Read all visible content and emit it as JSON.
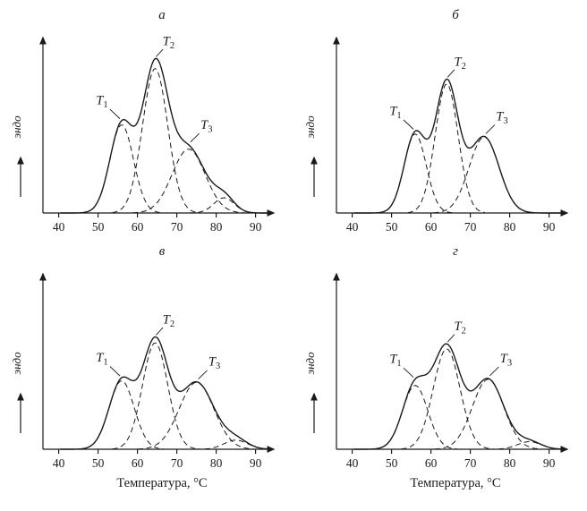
{
  "figure": {
    "panel_labels": [
      "а",
      "б",
      "в",
      "г"
    ],
    "xlabel": "Температура, °C",
    "ylabel": "эндо",
    "x_ticks": [
      40,
      50,
      60,
      70,
      80,
      90
    ],
    "line_color": "#1a1a1a",
    "background_color": "#ffffff"
  },
  "chart_data": [
    {
      "type": "line",
      "panel_label": "а",
      "xlabel": "Температура, °C",
      "ylabel": "эндо",
      "x_ticks": [
        40,
        50,
        60,
        70,
        80,
        90
      ],
      "x_range": [
        40,
        94
      ],
      "y_axis": "endothermic heat flow, arbitrary units, no ticks",
      "composite_curve": "solid line = sum of dashed component peaks",
      "peaks": [
        {
          "label": "T",
          "sub": "1",
          "center": 56,
          "amplitude": 0.58,
          "sigma": 3.0
        },
        {
          "label": "T",
          "sub": "2",
          "center": 64.5,
          "amplitude": 0.95,
          "sigma": 3.2
        },
        {
          "label": "T",
          "sub": "3",
          "center": 73,
          "amplitude": 0.42,
          "sigma": 4.2
        },
        {
          "label": null,
          "sub": null,
          "center": 82,
          "amplitude": 0.1,
          "sigma": 2.6
        }
      ]
    },
    {
      "type": "line",
      "panel_label": "б",
      "xlabel": "Температура, °C",
      "ylabel": "эндо",
      "x_ticks": [
        40,
        50,
        60,
        70,
        80,
        90
      ],
      "x_range": [
        40,
        94
      ],
      "y_axis": "endothermic heat flow, arbitrary units, no ticks",
      "composite_curve": "solid line = sum of dashed component peaks",
      "peaks": [
        {
          "label": "T",
          "sub": "1",
          "center": 56,
          "amplitude": 0.52,
          "sigma": 2.8
        },
        {
          "label": "T",
          "sub": "2",
          "center": 64,
          "amplitude": 0.85,
          "sigma": 2.9
        },
        {
          "label": "T",
          "sub": "3",
          "center": 73.5,
          "amplitude": 0.5,
          "sigma": 3.8
        }
      ]
    },
    {
      "type": "line",
      "panel_label": "в",
      "xlabel": "Температура, °C",
      "ylabel": "эндо",
      "x_ticks": [
        40,
        50,
        60,
        70,
        80,
        90
      ],
      "x_range": [
        40,
        94
      ],
      "y_axis": "endothermic heat flow, arbitrary units, no ticks",
      "composite_curve": "solid line = sum of dashed component peaks",
      "peaks": [
        {
          "label": "T",
          "sub": "1",
          "center": 56,
          "amplitude": 0.45,
          "sigma": 3.2
        },
        {
          "label": "T",
          "sub": "2",
          "center": 64.5,
          "amplitude": 0.7,
          "sigma": 3.2
        },
        {
          "label": "T",
          "sub": "3",
          "center": 75,
          "amplitude": 0.44,
          "sigma": 4.4
        },
        {
          "label": null,
          "sub": null,
          "center": 85,
          "amplitude": 0.06,
          "sigma": 3.0
        }
      ]
    },
    {
      "type": "line",
      "panel_label": "г",
      "xlabel": "Температура, °C",
      "ylabel": "эндо",
      "x_ticks": [
        40,
        50,
        60,
        70,
        80,
        90
      ],
      "x_range": [
        40,
        94
      ],
      "y_axis": "endothermic heat flow, arbitrary units, no ticks",
      "composite_curve": "solid line = sum of dashed component peaks",
      "peaks": [
        {
          "label": "T",
          "sub": "1",
          "center": 56,
          "amplitude": 0.42,
          "sigma": 3.2
        },
        {
          "label": "T",
          "sub": "2",
          "center": 64,
          "amplitude": 0.66,
          "sigma": 3.4
        },
        {
          "label": "T",
          "sub": "3",
          "center": 74.5,
          "amplitude": 0.46,
          "sigma": 4.0
        },
        {
          "label": null,
          "sub": null,
          "center": 85,
          "amplitude": 0.05,
          "sigma": 3.0
        }
      ]
    }
  ]
}
